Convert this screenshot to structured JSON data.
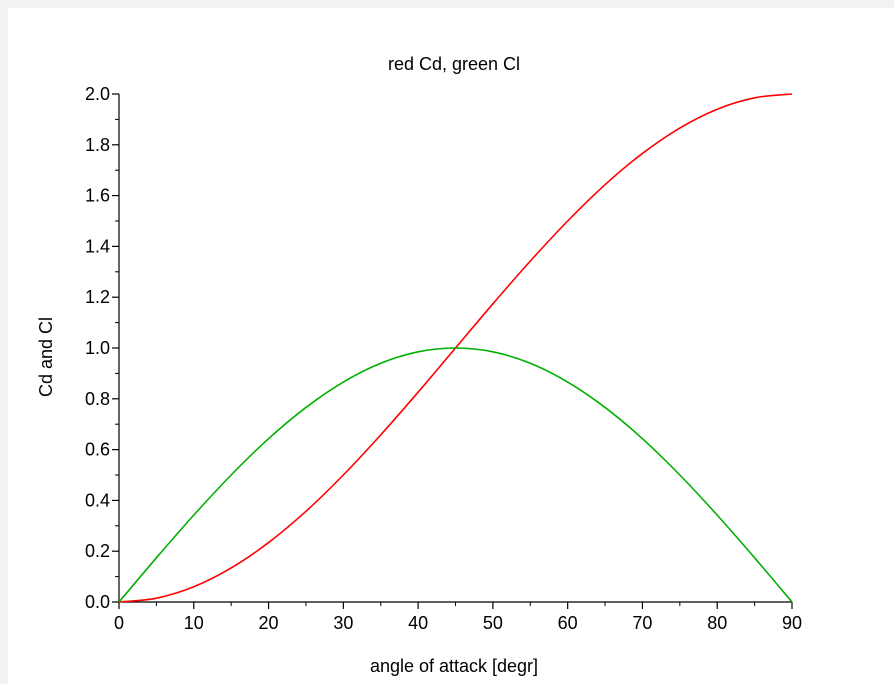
{
  "chart_data": {
    "type": "line",
    "title": "red Cd, green Cl",
    "xlabel": "angle of attack [degr]",
    "ylabel": "Cd and Cl",
    "xlim": [
      0,
      90
    ],
    "ylim": [
      0,
      2.0
    ],
    "grid": false,
    "x_ticks": [
      "0",
      "10",
      "20",
      "30",
      "40",
      "50",
      "60",
      "70",
      "80",
      "90"
    ],
    "y_ticks": [
      "0.0",
      "0.2",
      "0.4",
      "0.6",
      "0.8",
      "1.0",
      "1.2",
      "1.4",
      "1.6",
      "1.8",
      "2.0"
    ],
    "x": [
      0,
      5,
      10,
      15,
      20,
      25,
      30,
      35,
      40,
      45,
      50,
      55,
      60,
      65,
      70,
      75,
      80,
      85,
      90
    ],
    "series": [
      {
        "color": "#ff0000",
        "values": [
          0.0,
          0.015,
          0.06,
          0.134,
          0.234,
          0.357,
          0.5,
          0.658,
          0.826,
          1.0,
          1.174,
          1.342,
          1.5,
          1.643,
          1.766,
          1.866,
          1.94,
          1.985,
          2.0
        ]
      },
      {
        "color": "#00b000",
        "values": [
          0.0,
          0.174,
          0.342,
          0.5,
          0.643,
          0.766,
          0.866,
          0.94,
          0.985,
          1.0,
          0.985,
          0.94,
          0.866,
          0.766,
          0.643,
          0.5,
          0.342,
          0.174,
          0.0
        ]
      }
    ]
  }
}
